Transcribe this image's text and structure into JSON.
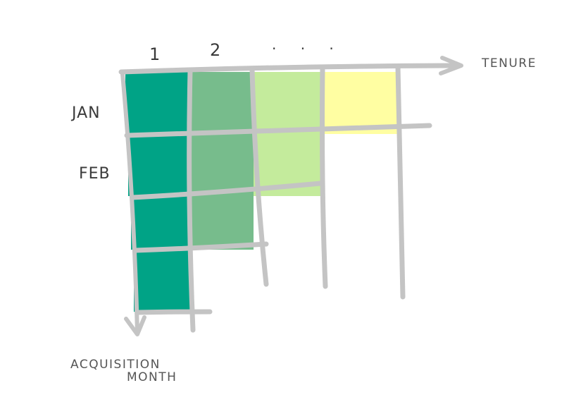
{
  "diagram": {
    "column_labels": [
      "1",
      "2"
    ],
    "ellipsis": ". . .",
    "row_labels": [
      "JAN",
      "FEB"
    ],
    "x_axis_label": "TENURE",
    "y_axis_label_line1": "ACQUISITION",
    "y_axis_label_line2": "MONTH"
  },
  "colors": {
    "tenure_1": "#00a386",
    "tenure_2": "#77bc8c",
    "tenure_3": "#c4eb9c",
    "tenure_4": "#fffea2",
    "grid": "#c4c4c4"
  },
  "cohorts": [
    {
      "row": 0,
      "cells": 4
    },
    {
      "row": 1,
      "cells": 3
    },
    {
      "row": 2,
      "cells": 2
    },
    {
      "row": 3,
      "cells": 1
    }
  ]
}
